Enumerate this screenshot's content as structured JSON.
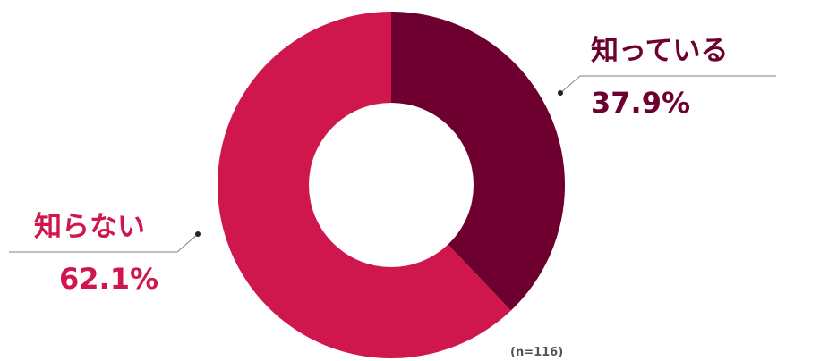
{
  "chart_data": {
    "type": "pie",
    "donut": true,
    "slices": [
      {
        "label": "知っている",
        "value": 37.9,
        "value_label": "37.9%",
        "color": "#6e0030"
      },
      {
        "label": "知らない",
        "value": 62.1,
        "value_label": "62.1%",
        "color": "#d0174d"
      }
    ],
    "note": "(n=116)",
    "start_angle": "top, clockwise"
  },
  "colors": {
    "background": "#ffffff",
    "leader_line": "#808080",
    "note": "#555555"
  }
}
